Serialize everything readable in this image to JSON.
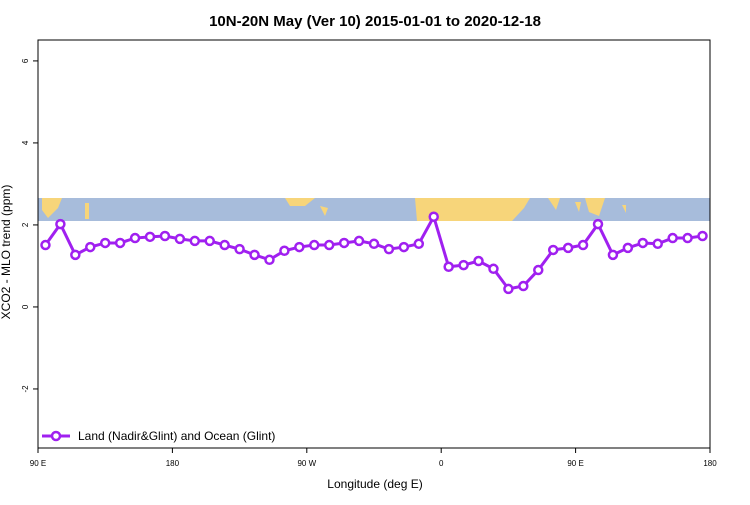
{
  "chart_data": {
    "type": "line",
    "title": "10N-20N May (Ver 10)   2015-01-01 to 2020-12-18",
    "x_label": "Longitude (deg E)",
    "y_label": "XCO2 - MLO trend (ppm)",
    "x": [
      95,
      105,
      115,
      125,
      135,
      145,
      155,
      165,
      175,
      185,
      195,
      205,
      215,
      225,
      235,
      245,
      255,
      265,
      275,
      285,
      295,
      305,
      315,
      325,
      335,
      345,
      355,
      365,
      375,
      385,
      395,
      405,
      415,
      425,
      435,
      445,
      455,
      465,
      475,
      485,
      495,
      505,
      515,
      525,
      535
    ],
    "series": [
      {
        "name": "Land (Nadir&Glint) and Ocean (Glint)",
        "color": "#a020f0",
        "values": [
          1.51,
          2.02,
          1.27,
          1.46,
          1.56,
          1.56,
          1.68,
          1.71,
          1.73,
          1.66,
          1.61,
          1.61,
          1.51,
          1.41,
          1.27,
          1.15,
          1.37,
          1.46,
          1.51,
          1.51,
          1.56,
          1.61,
          1.54,
          1.41,
          1.46,
          1.54,
          2.2,
          0.98,
          1.02,
          1.12,
          0.93,
          0.44,
          0.51,
          0.9,
          1.39,
          1.44,
          1.51,
          2.02,
          1.27,
          1.44,
          1.56,
          1.54,
          1.68,
          1.68,
          1.73
        ]
      }
    ],
    "xlim": [
      90,
      540
    ],
    "xticks": [
      {
        "value": 90,
        "label": "90 E"
      },
      180,
      {
        "value": 270,
        "label": "90 W"
      },
      {
        "value": 360,
        "label": "0"
      },
      {
        "value": 450,
        "label": "90 E"
      },
      {
        "value": 540,
        "label": "180"
      }
    ],
    "ylim": [
      -3.44,
      6.51
    ],
    "yticks": [
      -2,
      0,
      2,
      4,
      6
    ],
    "legend": "bottom left"
  }
}
